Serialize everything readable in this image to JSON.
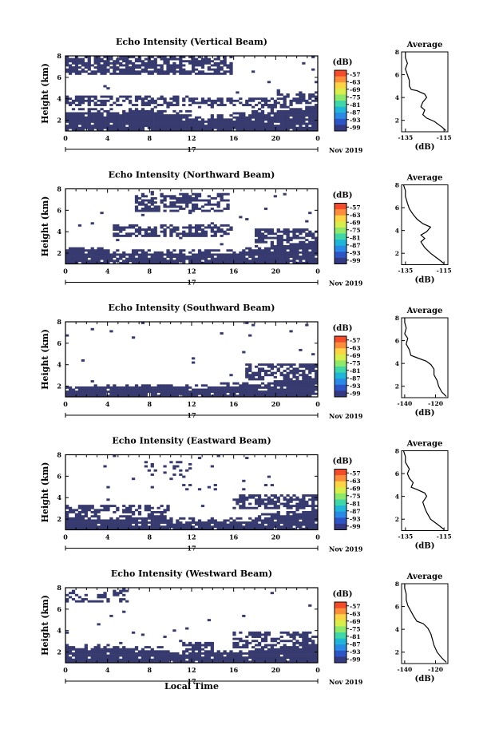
{
  "figure": {
    "xlabel_bottom": "Local Time",
    "date_label": "Nov 2019",
    "day_label": "17",
    "x_ticks": [
      "0",
      "4",
      "8",
      "12",
      "16",
      "20",
      "0"
    ],
    "colorbar_unit": "(dB)",
    "colorbar_ticks": [
      "-57",
      "-63",
      "-69",
      "-75",
      "-81",
      "-87",
      "-93",
      "-99"
    ],
    "colorbar_colors": [
      "#f44b2a",
      "#fb8d3c",
      "#fdd443",
      "#d9ee4a",
      "#8ee86a",
      "#3fd7a8",
      "#1fb6d8",
      "#2a8ae6",
      "#2d55c6",
      "#333a82"
    ],
    "avg_title": "Average",
    "avg_xlabel": "(dB)",
    "nodata_color": "#ffffff",
    "echo_color": "#363a6e"
  },
  "chart_data": [
    {
      "type": "heatmap",
      "title": "Echo Intensity (Vertical Beam)",
      "ylabel": "Height (km)",
      "y_ticks": [
        "8",
        "6",
        "4",
        "2"
      ],
      "xlim": [
        0,
        24
      ],
      "ylim": [
        1,
        8
      ],
      "profile": {
        "xticks": [
          "-135",
          "-115"
        ],
        "xlim": [
          -137,
          -113
        ],
        "ylim": [
          1,
          8
        ],
        "points": [
          [
            -114,
            1.1
          ],
          [
            -116,
            1.4
          ],
          [
            -120,
            1.9
          ],
          [
            -124,
            2.2
          ],
          [
            -126,
            2.5
          ],
          [
            -125,
            2.9
          ],
          [
            -127,
            3.2
          ],
          [
            -126,
            3.6
          ],
          [
            -124,
            4.0
          ],
          [
            -125,
            4.3
          ],
          [
            -129,
            4.6
          ],
          [
            -132,
            4.7
          ],
          [
            -133,
            5.0
          ],
          [
            -133,
            5.5
          ],
          [
            -134,
            6.0
          ],
          [
            -135,
            6.5
          ],
          [
            -134,
            7.0
          ],
          [
            -135,
            7.5
          ],
          [
            -135,
            8.0
          ]
        ]
      }
    },
    {
      "type": "heatmap",
      "title": "Echo Intensity (Northward Beam)",
      "ylabel": "Height (km)",
      "y_ticks": [
        "8",
        "6",
        "4",
        "2"
      ],
      "xlim": [
        0,
        24
      ],
      "ylim": [
        1,
        8
      ],
      "profile": {
        "xticks": [
          "-135",
          "-115"
        ],
        "xlim": [
          -137,
          -113
        ],
        "ylim": [
          1,
          8
        ],
        "points": [
          [
            -115,
            1.1
          ],
          [
            -118,
            1.5
          ],
          [
            -122,
            2.0
          ],
          [
            -125,
            2.5
          ],
          [
            -127,
            3.0
          ],
          [
            -125,
            3.3
          ],
          [
            -127,
            3.6
          ],
          [
            -124,
            3.9
          ],
          [
            -122,
            4.3
          ],
          [
            -126,
            4.6
          ],
          [
            -129,
            5.0
          ],
          [
            -131,
            5.4
          ],
          [
            -133,
            5.9
          ],
          [
            -134,
            6.4
          ],
          [
            -135,
            7.0
          ],
          [
            -135,
            7.5
          ],
          [
            -136,
            8.0
          ]
        ]
      }
    },
    {
      "type": "heatmap",
      "title": "Echo Intensity (Southward Beam)",
      "ylabel": "Height (km)",
      "y_ticks": [
        "8",
        "6",
        "4",
        "2"
      ],
      "xlim": [
        0,
        24
      ],
      "ylim": [
        1,
        8
      ],
      "profile": {
        "xticks": [
          "-140",
          "-120"
        ],
        "xlim": [
          -142,
          -112
        ],
        "ylim": [
          1,
          8
        ],
        "points": [
          [
            -113,
            1.1
          ],
          [
            -116,
            1.5
          ],
          [
            -118,
            2.0
          ],
          [
            -119,
            2.5
          ],
          [
            -121,
            3.0
          ],
          [
            -121,
            3.5
          ],
          [
            -123,
            3.9
          ],
          [
            -126,
            4.2
          ],
          [
            -132,
            4.5
          ],
          [
            -136,
            4.7
          ],
          [
            -137,
            5.2
          ],
          [
            -139,
            5.7
          ],
          [
            -138,
            6.2
          ],
          [
            -140,
            6.6
          ],
          [
            -139,
            7.1
          ],
          [
            -140,
            7.6
          ],
          [
            -140,
            8.0
          ]
        ]
      }
    },
    {
      "type": "heatmap",
      "title": "Echo Intensity (Eastward Beam)",
      "ylabel": "Height (km)",
      "y_ticks": [
        "8",
        "6",
        "4",
        "2"
      ],
      "xlim": [
        0,
        24
      ],
      "ylim": [
        1,
        8
      ],
      "profile": {
        "xticks": [
          "-135",
          "-115"
        ],
        "xlim": [
          -137,
          -113
        ],
        "ylim": [
          1,
          8
        ],
        "points": [
          [
            -115,
            1.1
          ],
          [
            -118,
            1.5
          ],
          [
            -122,
            2.0
          ],
          [
            -124,
            2.6
          ],
          [
            -125,
            3.0
          ],
          [
            -126,
            3.5
          ],
          [
            -124,
            4.0
          ],
          [
            -125,
            4.3
          ],
          [
            -129,
            4.6
          ],
          [
            -132,
            4.8
          ],
          [
            -131,
            5.2
          ],
          [
            -133,
            5.6
          ],
          [
            -134,
            6.0
          ],
          [
            -133,
            6.4
          ],
          [
            -135,
            7.0
          ],
          [
            -135,
            7.5
          ],
          [
            -136,
            8.0
          ]
        ]
      }
    },
    {
      "type": "heatmap",
      "title": "Echo Intensity (Westward Beam)",
      "ylabel": "Height (km)",
      "y_ticks": [
        "8",
        "6",
        "4",
        "2"
      ],
      "xlim": [
        0,
        24
      ],
      "ylim": [
        1,
        8
      ],
      "profile": {
        "xticks": [
          "-140",
          "-120"
        ],
        "xlim": [
          -142,
          -112
        ],
        "ylim": [
          1,
          8
        ],
        "points": [
          [
            -113,
            1.1
          ],
          [
            -116,
            1.5
          ],
          [
            -119,
            2.0
          ],
          [
            -121,
            2.6
          ],
          [
            -122,
            3.1
          ],
          [
            -123,
            3.6
          ],
          [
            -125,
            4.1
          ],
          [
            -128,
            4.5
          ],
          [
            -132,
            4.7
          ],
          [
            -134,
            5.1
          ],
          [
            -136,
            5.6
          ],
          [
            -138,
            6.1
          ],
          [
            -139,
            6.6
          ],
          [
            -139,
            7.1
          ],
          [
            -140,
            7.6
          ],
          [
            -140,
            8.0
          ]
        ]
      }
    }
  ]
}
